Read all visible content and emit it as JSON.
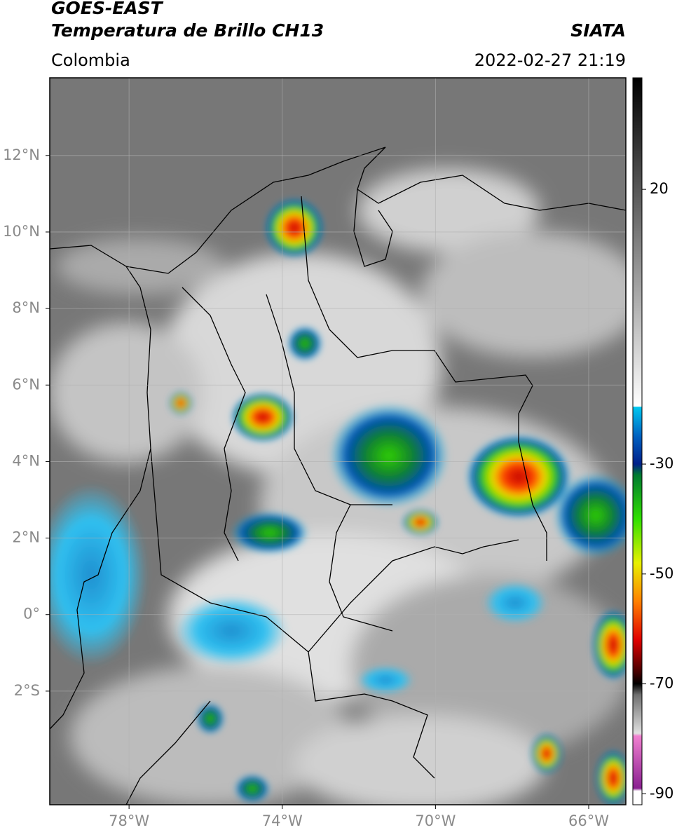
{
  "header": {
    "satellite": "GOES-EAST",
    "product": "Temperatura de Brillo CH13",
    "source": "SIATA",
    "region": "Colombia",
    "timestamp": "2022-02-27 21:19"
  },
  "map": {
    "xlim": [
      -80.07,
      -65.03
    ],
    "ylim": [
      -4.97,
      14.03
    ],
    "grid": true,
    "xticks": [
      {
        "value": -78,
        "label": "78°W"
      },
      {
        "value": -74,
        "label": "74°W"
      },
      {
        "value": -70,
        "label": "70°W"
      },
      {
        "value": -66,
        "label": "66°W"
      }
    ],
    "yticks": [
      {
        "value": 12,
        "label": "12°N"
      },
      {
        "value": 10,
        "label": "10°N"
      },
      {
        "value": 8,
        "label": "8°N"
      },
      {
        "value": 6,
        "label": "6°N"
      },
      {
        "value": 4,
        "label": "4°N"
      },
      {
        "value": 2,
        "label": "2°N"
      },
      {
        "value": 0,
        "label": "0°"
      },
      {
        "value": -2,
        "label": "2°S"
      }
    ]
  },
  "colorbar": {
    "ylim": [
      -92,
      40.3
    ],
    "ticks": [
      20,
      -30,
      -50,
      -70,
      -90
    ],
    "stops": [
      {
        "value": 40.3,
        "color": "#000000"
      },
      {
        "value": -19.5,
        "color": "#ffffff"
      },
      {
        "value": -19.6,
        "color": "#00c8f0"
      },
      {
        "value": -25,
        "color": "#0060c0"
      },
      {
        "value": -30,
        "color": "#00208a"
      },
      {
        "value": -32,
        "color": "#007a30"
      },
      {
        "value": -40,
        "color": "#30e000"
      },
      {
        "value": -48,
        "color": "#e8f000"
      },
      {
        "value": -55,
        "color": "#ff8000"
      },
      {
        "value": -62,
        "color": "#e00000"
      },
      {
        "value": -68,
        "color": "#400000"
      },
      {
        "value": -70,
        "color": "#000000"
      },
      {
        "value": -72,
        "color": "#707070"
      },
      {
        "value": -79,
        "color": "#e0e0e0"
      },
      {
        "value": -79.5,
        "color": "#f080d0"
      },
      {
        "value": -89,
        "color": "#8a2090"
      },
      {
        "value": -89.5,
        "color": "#ffffff"
      },
      {
        "value": -92,
        "color": "#ffffff"
      }
    ]
  }
}
